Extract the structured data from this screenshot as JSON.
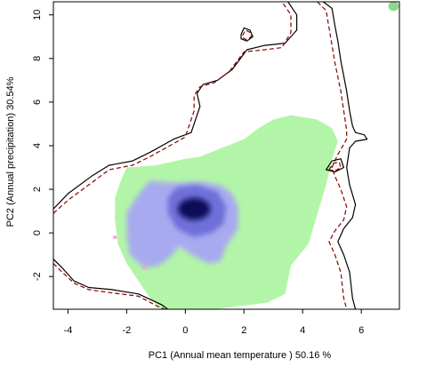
{
  "chart_data": {
    "type": "heatmap",
    "title": "",
    "xlabel": "PC1 (Annual mean temperature ) 50.16 %",
    "ylabel": "PC2 (Annual precipitation) 30.54%",
    "xlim": [
      -4.5,
      7.3
    ],
    "ylim": [
      -3.5,
      10.6
    ],
    "x_ticks": [
      -4,
      -2,
      0,
      2,
      4,
      6
    ],
    "y_ticks": [
      -2,
      0,
      2,
      4,
      6,
      8,
      10
    ],
    "x_tick_labels": [
      "-4",
      "-2",
      "0",
      "2",
      "4",
      "6"
    ],
    "y_tick_labels": [
      "-2",
      "0",
      "2",
      "4",
      "6",
      "8",
      "10"
    ],
    "grid": false,
    "legend": "none",
    "colors": {
      "green_region": "#b3f5a8",
      "blue_light": "#a8aaf0",
      "blue_mid": "#6e70d8",
      "blue_dark": "#0a0c5a",
      "outer_contour": "#000000",
      "dashed_contour": "#8b0000",
      "pink_cells": "#f5a6c8"
    },
    "layers": [
      {
        "name": "green",
        "color": "#b3f5a8",
        "polygon": [
          [
            -2,
            3
          ],
          [
            -1,
            3.1
          ],
          [
            0,
            3.4
          ],
          [
            0.5,
            3.5
          ],
          [
            2,
            4.3
          ],
          [
            2.5,
            4.8
          ],
          [
            3,
            5.2
          ],
          [
            3.6,
            5.4
          ],
          [
            4.5,
            5.2
          ],
          [
            5,
            4.8
          ],
          [
            5.2,
            4.2
          ],
          [
            5,
            3.4
          ],
          [
            4.8,
            2.2
          ],
          [
            4.4,
            0.4
          ],
          [
            4.2,
            -0.5
          ],
          [
            3.6,
            -1.5
          ],
          [
            3.4,
            -2.8
          ],
          [
            2.8,
            -3.2
          ],
          [
            1,
            -3.5
          ],
          [
            -0.8,
            -3.5
          ],
          [
            -1.2,
            -3
          ],
          [
            -1.6,
            -2.2
          ],
          [
            -2,
            -1.4
          ],
          [
            -2.3,
            -0.5
          ],
          [
            -2.4,
            0.6
          ],
          [
            -2.4,
            1.6
          ],
          [
            -2.2,
            2.4
          ]
        ]
      },
      {
        "name": "blue-outer",
        "color": "#a8aaf0",
        "polygon": [
          [
            -1.2,
            2.4
          ],
          [
            -0.9,
            2.35
          ],
          [
            -0.3,
            2.3
          ],
          [
            0.5,
            2.35
          ],
          [
            1.2,
            2.2
          ],
          [
            1.6,
            1.8
          ],
          [
            1.8,
            1.2
          ],
          [
            1.8,
            0.2
          ],
          [
            1.6,
            -0.2
          ],
          [
            1.4,
            -0.6
          ],
          [
            1.2,
            -1.3
          ],
          [
            0.8,
            -1.4
          ],
          [
            0.2,
            -1.0
          ],
          [
            -0.2,
            -0.6
          ],
          [
            -0.5,
            -1.1
          ],
          [
            -0.9,
            -1.5
          ],
          [
            -1.4,
            -1.6
          ],
          [
            -1.9,
            -1.0
          ],
          [
            -2.0,
            -0.2
          ],
          [
            -2.0,
            0.9
          ],
          [
            -1.7,
            1.6
          ],
          [
            -1.4,
            2.1
          ]
        ]
      },
      {
        "name": "blue-mid",
        "color": "#6e70d8",
        "polygon": [
          [
            -0.3,
            2.1
          ],
          [
            0.4,
            2.2
          ],
          [
            1.1,
            1.9
          ],
          [
            1.4,
            1.2
          ],
          [
            1.3,
            0.4
          ],
          [
            0.9,
            0.0
          ],
          [
            0.3,
            -0.2
          ],
          [
            -0.3,
            0.2
          ],
          [
            -0.6,
            0.9
          ],
          [
            -0.6,
            1.6
          ]
        ]
      },
      {
        "name": "blue-dark",
        "color": "#0a0c5a",
        "center": [
          0.3,
          1.1
        ],
        "radii": [
          0.55,
          0.5
        ]
      },
      {
        "name": "pink-1",
        "color": "#f5a6c8",
        "center": [
          -2.4,
          -0.2
        ],
        "radii": [
          0.07,
          0.08
        ]
      },
      {
        "name": "pink-2",
        "color": "#f5a6c8",
        "center": [
          -1.4,
          -1.6
        ],
        "radii": [
          0.07,
          0.08
        ]
      },
      {
        "name": "green-corner",
        "color": "#8fd88a",
        "center": [
          7.1,
          10.4
        ],
        "radii": [
          0.18,
          0.22
        ]
      }
    ],
    "contours": [
      {
        "name": "outer-contour",
        "color": "#000000",
        "dash": false,
        "points": [
          [
            -4.5,
            1.1
          ],
          [
            -4,
            1.8
          ],
          [
            -3.2,
            2.6
          ],
          [
            -2.6,
            3.1
          ],
          [
            -1.8,
            3.3
          ],
          [
            -1.2,
            3.7
          ],
          [
            -0.4,
            4.3
          ],
          [
            0.2,
            4.6
          ],
          [
            0.5,
            5.8
          ],
          [
            0.4,
            6.4
          ],
          [
            0.6,
            6.8
          ],
          [
            1.1,
            7.0
          ],
          [
            1.6,
            7.5
          ],
          [
            2.1,
            8.4
          ],
          [
            2.7,
            8.6
          ],
          [
            3.4,
            8.7
          ],
          [
            3.8,
            9.3
          ],
          [
            3.8,
            10.0
          ],
          [
            3.5,
            10.6
          ]
        ]
      },
      {
        "name": "outer-contour-right",
        "color": "#000000",
        "dash": false,
        "points": [
          [
            4.7,
            10.6
          ],
          [
            5.0,
            10.3
          ],
          [
            5.1,
            9.5
          ],
          [
            5.2,
            8.8
          ],
          [
            5.3,
            7.9
          ],
          [
            5.5,
            6.5
          ],
          [
            5.6,
            5.6
          ],
          [
            5.7,
            4.9
          ],
          [
            5.8,
            4.6
          ],
          [
            6.1,
            4.5
          ],
          [
            6.2,
            4.3
          ],
          [
            5.8,
            4.2
          ],
          [
            5.6,
            3.9
          ],
          [
            5.5,
            3.0
          ],
          [
            5.6,
            2.2
          ],
          [
            5.8,
            1.3
          ],
          [
            5.7,
            0.7
          ],
          [
            5.4,
            0.2
          ],
          [
            5.2,
            -0.4
          ],
          [
            5.4,
            -1.0
          ],
          [
            5.6,
            -1.8
          ],
          [
            5.7,
            -3.0
          ],
          [
            5.8,
            -3.5
          ]
        ]
      },
      {
        "name": "outer-contour-bottom",
        "color": "#000000",
        "dash": false,
        "points": [
          [
            -4.5,
            -1.2
          ],
          [
            -4.2,
            -1.6
          ],
          [
            -3.8,
            -2.2
          ],
          [
            -3.3,
            -2.5
          ],
          [
            -2.5,
            -2.6
          ],
          [
            -1.6,
            -2.8
          ],
          [
            -0.8,
            -3.3
          ],
          [
            -0.6,
            -3.5
          ]
        ]
      },
      {
        "name": "dashed-contour",
        "color": "#8b0000",
        "dash": true,
        "points": [
          [
            -4.5,
            0.9
          ],
          [
            -4,
            1.5
          ],
          [
            -3.2,
            2.3
          ],
          [
            -2.6,
            2.9
          ],
          [
            -1.8,
            3.1
          ],
          [
            -1.2,
            3.5
          ],
          [
            -0.4,
            4.1
          ],
          [
            0.0,
            4.4
          ],
          [
            0.3,
            5.6
          ],
          [
            0.3,
            6.3
          ],
          [
            0.5,
            6.7
          ],
          [
            1.0,
            6.9
          ],
          [
            1.5,
            7.4
          ],
          [
            2.0,
            8.3
          ],
          [
            2.7,
            8.4
          ],
          [
            3.3,
            8.5
          ],
          [
            3.6,
            9.2
          ],
          [
            3.6,
            10.0
          ],
          [
            3.3,
            10.6
          ]
        ]
      },
      {
        "name": "dashed-contour-right",
        "color": "#8b0000",
        "dash": true,
        "points": [
          [
            4.5,
            10.6
          ],
          [
            4.8,
            10.2
          ],
          [
            4.9,
            9.4
          ],
          [
            5.0,
            8.6
          ],
          [
            5.1,
            7.8
          ],
          [
            5.3,
            6.5
          ],
          [
            5.4,
            5.6
          ],
          [
            5.5,
            4.7
          ],
          [
            5.5,
            4.3
          ],
          [
            5.2,
            3.6
          ],
          [
            5.0,
            3.0
          ],
          [
            5.1,
            2.6
          ],
          [
            5.3,
            2.0
          ],
          [
            5.5,
            1.2
          ],
          [
            5.4,
            0.6
          ],
          [
            5.1,
            0.1
          ],
          [
            4.9,
            -0.4
          ],
          [
            5.1,
            -1.0
          ],
          [
            5.3,
            -1.8
          ],
          [
            5.4,
            -3.0
          ],
          [
            5.5,
            -3.5
          ]
        ]
      },
      {
        "name": "dashed-contour-bottom",
        "color": "#8b0000",
        "dash": true,
        "points": [
          [
            -4.5,
            -1.4
          ],
          [
            -4.2,
            -1.8
          ],
          [
            -3.8,
            -2.3
          ],
          [
            -3.3,
            -2.6
          ],
          [
            -2.5,
            -2.75
          ],
          [
            -1.6,
            -2.9
          ],
          [
            -0.9,
            -3.4
          ],
          [
            -0.7,
            -3.5
          ]
        ]
      },
      {
        "name": "island-contour",
        "color": "#000000",
        "dash": false,
        "closed": true,
        "points": [
          [
            1.9,
            9.1
          ],
          [
            2.0,
            9.4
          ],
          [
            2.2,
            9.3
          ],
          [
            2.3,
            9.0
          ],
          [
            2.1,
            8.8
          ],
          [
            1.9,
            8.9
          ]
        ]
      },
      {
        "name": "island-contour-dashed",
        "color": "#8b0000",
        "dash": true,
        "closed": true,
        "points": [
          [
            1.95,
            9.05
          ],
          [
            2.05,
            9.3
          ],
          [
            2.2,
            9.2
          ],
          [
            2.25,
            9.0
          ],
          [
            2.1,
            8.85
          ],
          [
            1.95,
            8.95
          ]
        ]
      },
      {
        "name": "right-notch-contour",
        "color": "#000000",
        "dash": false,
        "closed": true,
        "points": [
          [
            4.8,
            2.9
          ],
          [
            5.0,
            3.3
          ],
          [
            5.3,
            3.4
          ],
          [
            5.4,
            3.0
          ],
          [
            5.1,
            2.8
          ]
        ]
      },
      {
        "name": "right-notch-dashed",
        "color": "#8b0000",
        "dash": true,
        "closed": true,
        "points": [
          [
            4.9,
            2.9
          ],
          [
            5.05,
            3.2
          ],
          [
            5.25,
            3.25
          ],
          [
            5.3,
            3.0
          ],
          [
            5.1,
            2.85
          ]
        ]
      }
    ]
  }
}
